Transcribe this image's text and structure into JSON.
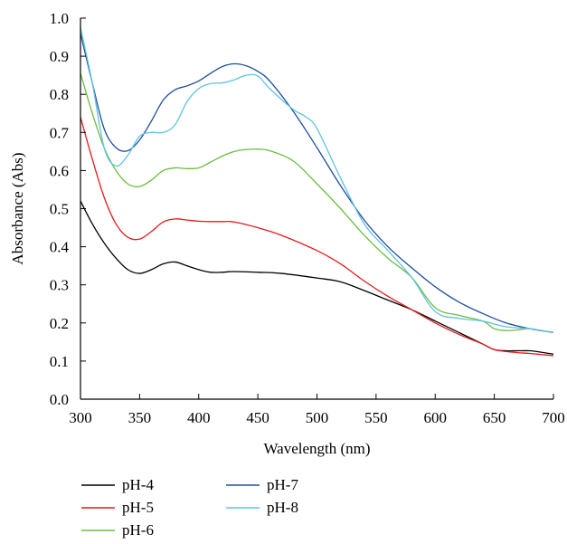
{
  "chart_data": {
    "type": "line",
    "title": "",
    "xlabel": "Wavelength (nm)",
    "ylabel": "Absorbance (Abs)",
    "xlim": [
      300,
      700
    ],
    "ylim": [
      0.0,
      1.0
    ],
    "xticks": [
      300,
      350,
      400,
      450,
      500,
      550,
      600,
      650,
      700
    ],
    "xtick_labels": [
      "300",
      "350",
      "400",
      "450",
      "500",
      "550",
      "600",
      "650",
      "700"
    ],
    "yticks": [
      0.0,
      0.1,
      0.2,
      0.3,
      0.4,
      0.5,
      0.6,
      0.7,
      0.8,
      0.9,
      1.0
    ],
    "ytick_labels": [
      "0.0",
      "0.1",
      "0.2",
      "0.3",
      "0.4",
      "0.5",
      "0.6",
      "0.7",
      "0.8",
      "0.9",
      "1.0"
    ],
    "grid": false,
    "legend_position": "bottom-left",
    "series": [
      {
        "name": "pH-4",
        "color": "#000000",
        "x": [
          300,
          310,
          320,
          330,
          340,
          350,
          360,
          370,
          380,
          390,
          400,
          410,
          420,
          430,
          450,
          470,
          500,
          520,
          540,
          560,
          580,
          600,
          620,
          640,
          650,
          660,
          670,
          680,
          690,
          700
        ],
        "y": [
          0.52,
          0.46,
          0.41,
          0.37,
          0.34,
          0.33,
          0.34,
          0.355,
          0.36,
          0.35,
          0.34,
          0.333,
          0.333,
          0.335,
          0.333,
          0.33,
          0.318,
          0.308,
          0.285,
          0.26,
          0.235,
          0.205,
          0.175,
          0.145,
          0.13,
          0.127,
          0.127,
          0.127,
          0.123,
          0.118
        ]
      },
      {
        "name": "pH-5",
        "color": "#e8191f",
        "x": [
          300,
          310,
          320,
          330,
          340,
          350,
          360,
          370,
          380,
          390,
          400,
          410,
          420,
          430,
          450,
          470,
          500,
          520,
          540,
          560,
          580,
          600,
          620,
          640,
          650,
          660,
          670,
          680,
          690,
          700
        ],
        "y": [
          0.74,
          0.63,
          0.53,
          0.46,
          0.425,
          0.42,
          0.44,
          0.465,
          0.473,
          0.47,
          0.467,
          0.466,
          0.466,
          0.465,
          0.45,
          0.43,
          0.39,
          0.355,
          0.31,
          0.27,
          0.235,
          0.2,
          0.17,
          0.145,
          0.13,
          0.125,
          0.122,
          0.12,
          0.117,
          0.114
        ]
      },
      {
        "name": "pH-6",
        "color": "#6abf3f",
        "x": [
          300,
          310,
          320,
          330,
          340,
          350,
          360,
          370,
          380,
          390,
          400,
          410,
          420,
          430,
          440,
          450,
          460,
          480,
          500,
          520,
          540,
          560,
          580,
          600,
          620,
          640,
          650,
          660,
          670,
          680,
          690,
          700
        ],
        "y": [
          0.855,
          0.75,
          0.66,
          0.6,
          0.565,
          0.558,
          0.575,
          0.6,
          0.607,
          0.605,
          0.607,
          0.622,
          0.638,
          0.65,
          0.655,
          0.656,
          0.652,
          0.625,
          0.565,
          0.5,
          0.43,
          0.37,
          0.32,
          0.24,
          0.22,
          0.205,
          0.185,
          0.18,
          0.182,
          0.185,
          0.18,
          0.175
        ]
      },
      {
        "name": "pH-7",
        "color": "#1f4e9c",
        "x": [
          300,
          310,
          320,
          330,
          340,
          350,
          360,
          370,
          380,
          390,
          400,
          410,
          420,
          430,
          440,
          450,
          460,
          480,
          500,
          520,
          540,
          560,
          580,
          600,
          620,
          640,
          660,
          680,
          700
        ],
        "y": [
          0.96,
          0.83,
          0.71,
          0.66,
          0.652,
          0.68,
          0.73,
          0.785,
          0.812,
          0.822,
          0.835,
          0.855,
          0.873,
          0.88,
          0.875,
          0.86,
          0.835,
          0.755,
          0.66,
          0.56,
          0.47,
          0.4,
          0.345,
          0.295,
          0.255,
          0.225,
          0.2,
          0.185,
          0.175
        ]
      },
      {
        "name": "pH-8",
        "color": "#5fc3e0",
        "x": [
          300,
          310,
          320,
          330,
          340,
          350,
          360,
          370,
          380,
          390,
          400,
          410,
          420,
          430,
          440,
          450,
          460,
          480,
          490,
          500,
          520,
          540,
          560,
          580,
          600,
          620,
          640,
          660,
          680,
          700
        ],
        "y": [
          0.975,
          0.83,
          0.66,
          0.612,
          0.64,
          0.69,
          0.7,
          0.7,
          0.72,
          0.78,
          0.815,
          0.828,
          0.83,
          0.838,
          0.85,
          0.848,
          0.815,
          0.76,
          0.742,
          0.71,
          0.58,
          0.46,
          0.39,
          0.32,
          0.23,
          0.212,
          0.205,
          0.19,
          0.185,
          0.175
        ]
      }
    ]
  }
}
